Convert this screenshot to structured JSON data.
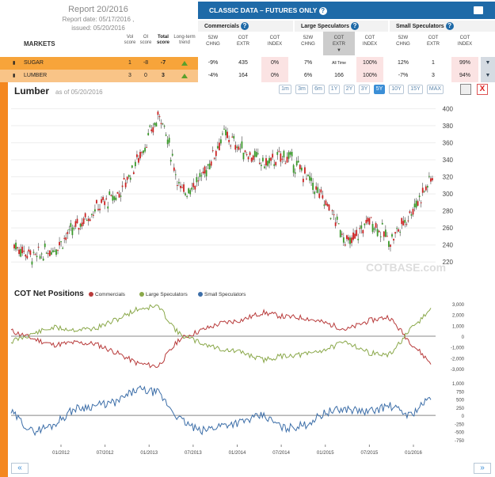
{
  "report": {
    "title": "Report 20/2016",
    "date": "Report date: 05/17/2016 ,",
    "issued": "issued: 05/20/2016"
  },
  "markets_label": "MARKETS",
  "left_columns": {
    "vol": [
      "Vol",
      "score"
    ],
    "oi": [
      "OI",
      "score"
    ],
    "total": [
      "Total",
      "score"
    ],
    "trend": [
      "Long-term",
      "trend"
    ]
  },
  "classic_bar": {
    "title": "CLASSIC DATA – FUTURES ONLY",
    "help_icon": "question-icon",
    "print_icon": "print-icon"
  },
  "groups": [
    {
      "name": "Commercials",
      "cols": [
        [
          "52W",
          "CHNG"
        ],
        [
          "COT",
          "EXTR"
        ],
        [
          "COT",
          "INDEX"
        ]
      ]
    },
    {
      "name": "Large Speculators",
      "cols": [
        [
          "52W",
          "CHNG"
        ],
        [
          "COT",
          "EXTR"
        ],
        [
          "COT",
          "INDEX"
        ]
      ]
    },
    {
      "name": "Small Speculators",
      "cols": [
        [
          "52W",
          "CHNG"
        ],
        [
          "COT",
          "EXTR"
        ],
        [
          "COT",
          "INDEX"
        ]
      ]
    }
  ],
  "rows": [
    {
      "market": "SUGAR",
      "vol": "1",
      "oi": "-8",
      "total": "-7",
      "comm": [
        "-9%",
        "435",
        "0%"
      ],
      "large": [
        "7%",
        "All Time",
        "100%"
      ],
      "small": [
        "12%",
        "1",
        "99%"
      ]
    },
    {
      "market": "LUMBER",
      "vol": "3",
      "oi": "0",
      "total": "3",
      "comm": [
        "-4%",
        "164",
        "0%"
      ],
      "large": [
        "6%",
        "166",
        "100%"
      ],
      "small": [
        "-7%",
        "3",
        "94%"
      ]
    }
  ],
  "chart_header": {
    "title": "Lumber",
    "as_of": "as of 05/20/2016",
    "zoom_buttons": [
      "1m",
      "3m",
      "6m",
      "1Y",
      "2Y",
      "3Y",
      "5Y",
      "10Y",
      "15Y",
      "MAX"
    ],
    "active_zoom": "5Y",
    "close_label": "X"
  },
  "watermark": "COTBASE.com",
  "cot_section": {
    "title": "COT Net Positions",
    "legend": [
      {
        "name": "Commercials",
        "color": "#b83b3b"
      },
      {
        "name": "Large Speculators",
        "color": "#8aa84a"
      },
      {
        "name": "Small Speculators",
        "color": "#3c6ea8"
      }
    ]
  },
  "nav": {
    "prev": "«",
    "next": "»"
  },
  "chart_data": [
    {
      "type": "candlestick",
      "title": "Lumber",
      "x": [
        "2011-06",
        "2011-09",
        "2011-12",
        "2012-03",
        "2012-06",
        "2012-09",
        "2012-12",
        "2013-03",
        "2013-06",
        "2013-09",
        "2013-12",
        "2014-03",
        "2014-06",
        "2014-09",
        "2014-12",
        "2015-03",
        "2015-06",
        "2015-09",
        "2015-12",
        "2016-03",
        "2016-05"
      ],
      "close": [
        240,
        225,
        238,
        262,
        285,
        300,
        345,
        395,
        300,
        320,
        370,
        350,
        335,
        345,
        320,
        285,
        240,
        270,
        245,
        280,
        320
      ],
      "ylim": [
        210,
        405
      ],
      "yticks": [
        220,
        240,
        260,
        280,
        300,
        320,
        340,
        360,
        380,
        400
      ]
    },
    {
      "type": "line",
      "title": "COT Net Positions",
      "x": [
        "2011-06",
        "2011-09",
        "2011-12",
        "2012-03",
        "2012-06",
        "2012-09",
        "2012-12",
        "2013-03",
        "2013-06",
        "2013-09",
        "2013-12",
        "2014-03",
        "2014-06",
        "2014-09",
        "2014-12",
        "2015-03",
        "2015-06",
        "2015-09",
        "2015-12",
        "2016-03",
        "2016-05"
      ],
      "series": [
        {
          "name": "Commercials",
          "values": [
            500,
            -200,
            -800,
            -600,
            -700,
            -1500,
            -2500,
            -2800,
            -300,
            500,
            1200,
            1500,
            2200,
            1800,
            1700,
            1200,
            600,
            1400,
            1800,
            -500,
            -2500
          ]
        },
        {
          "name": "Large Speculators",
          "values": [
            -500,
            200,
            800,
            600,
            700,
            1500,
            2500,
            2800,
            200,
            -600,
            -1200,
            -1500,
            -2200,
            -1800,
            -1700,
            -1200,
            -500,
            -1500,
            -1800,
            500,
            2500
          ]
        }
      ],
      "ylim": [
        -3000,
        3000
      ],
      "yticks": [
        3000,
        2000,
        1000,
        0,
        -1000,
        -2000,
        -3000
      ]
    },
    {
      "type": "line",
      "title": "Small Speculators",
      "x": [
        "2011-06",
        "2011-09",
        "2011-12",
        "2012-03",
        "2012-06",
        "2012-09",
        "2012-12",
        "2013-03",
        "2013-06",
        "2013-09",
        "2013-12",
        "2014-03",
        "2014-06",
        "2014-09",
        "2014-12",
        "2015-03",
        "2015-06",
        "2015-09",
        "2015-12",
        "2016-03",
        "2016-05"
      ],
      "series": [
        {
          "name": "Small Speculators",
          "values": [
            100,
            -500,
            -300,
            200,
            300,
            400,
            800,
            700,
            -100,
            -500,
            -300,
            -200,
            0,
            -400,
            -300,
            100,
            200,
            100,
            300,
            0,
            550
          ]
        }
      ],
      "ylim": [
        -800,
        1000
      ],
      "yticks": [
        1000,
        750,
        500,
        250,
        0,
        -250,
        -500,
        -750
      ],
      "xticks": [
        "01/2012",
        "07/2012",
        "01/2013",
        "07/2013",
        "01/2014",
        "07/2014",
        "01/2015",
        "07/2015",
        "01/2016"
      ]
    }
  ]
}
